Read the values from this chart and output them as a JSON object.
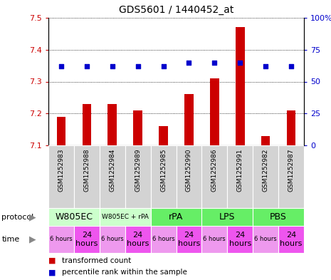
{
  "title": "GDS5601 / 1440452_at",
  "samples": [
    "GSM1252983",
    "GSM1252988",
    "GSM1252984",
    "GSM1252989",
    "GSM1252985",
    "GSM1252990",
    "GSM1252986",
    "GSM1252991",
    "GSM1252982",
    "GSM1252987"
  ],
  "bar_values": [
    7.19,
    7.23,
    7.23,
    7.21,
    7.16,
    7.26,
    7.31,
    7.47,
    7.13,
    7.21
  ],
  "dot_values": [
    62,
    62,
    62,
    62,
    62,
    65,
    65,
    65,
    62,
    62
  ],
  "ylim_left": [
    7.1,
    7.5
  ],
  "ylim_right": [
    0,
    100
  ],
  "yticks_left": [
    7.1,
    7.2,
    7.3,
    7.4,
    7.5
  ],
  "yticks_right": [
    0,
    25,
    50,
    75,
    100
  ],
  "bar_color": "#cc0000",
  "dot_color": "#0000cc",
  "bar_bottom": 7.1,
  "protocols": [
    {
      "label": "W805EC",
      "span": [
        0,
        2
      ],
      "color": "#ccffcc",
      "fontsize": 9
    },
    {
      "label": "W805EC + rPA",
      "span": [
        2,
        4
      ],
      "color": "#ccffcc",
      "fontsize": 6.5
    },
    {
      "label": "rPA",
      "span": [
        4,
        6
      ],
      "color": "#66ee66",
      "fontsize": 9
    },
    {
      "label": "LPS",
      "span": [
        6,
        8
      ],
      "color": "#66ee66",
      "fontsize": 9
    },
    {
      "label": "PBS",
      "span": [
        8,
        10
      ],
      "color": "#66ee66",
      "fontsize": 9
    }
  ],
  "times": [
    {
      "label": "6 hours",
      "span": [
        0,
        1
      ],
      "color": "#ee99ee",
      "fontsize": 6
    },
    {
      "label": "24\nhours",
      "span": [
        1,
        2
      ],
      "color": "#ee55ee",
      "fontsize": 8
    },
    {
      "label": "6 hours",
      "span": [
        2,
        3
      ],
      "color": "#ee99ee",
      "fontsize": 6
    },
    {
      "label": "24\nhours",
      "span": [
        3,
        4
      ],
      "color": "#ee55ee",
      "fontsize": 8
    },
    {
      "label": "6 hours",
      "span": [
        4,
        5
      ],
      "color": "#ee99ee",
      "fontsize": 6
    },
    {
      "label": "24\nhours",
      "span": [
        5,
        6
      ],
      "color": "#ee55ee",
      "fontsize": 8
    },
    {
      "label": "6 hours",
      "span": [
        6,
        7
      ],
      "color": "#ee99ee",
      "fontsize": 6
    },
    {
      "label": "24\nhours",
      "span": [
        7,
        8
      ],
      "color": "#ee55ee",
      "fontsize": 8
    },
    {
      "label": "6 hours",
      "span": [
        8,
        9
      ],
      "color": "#ee99ee",
      "fontsize": 6
    },
    {
      "label": "24\nhours",
      "span": [
        9,
        10
      ],
      "color": "#ee55ee",
      "fontsize": 8
    }
  ],
  "legend_items": [
    {
      "color": "#cc0000",
      "label": "transformed count"
    },
    {
      "color": "#0000cc",
      "label": "percentile rank within the sample"
    }
  ],
  "fig_width": 4.65,
  "fig_height": 3.93,
  "dpi": 100
}
